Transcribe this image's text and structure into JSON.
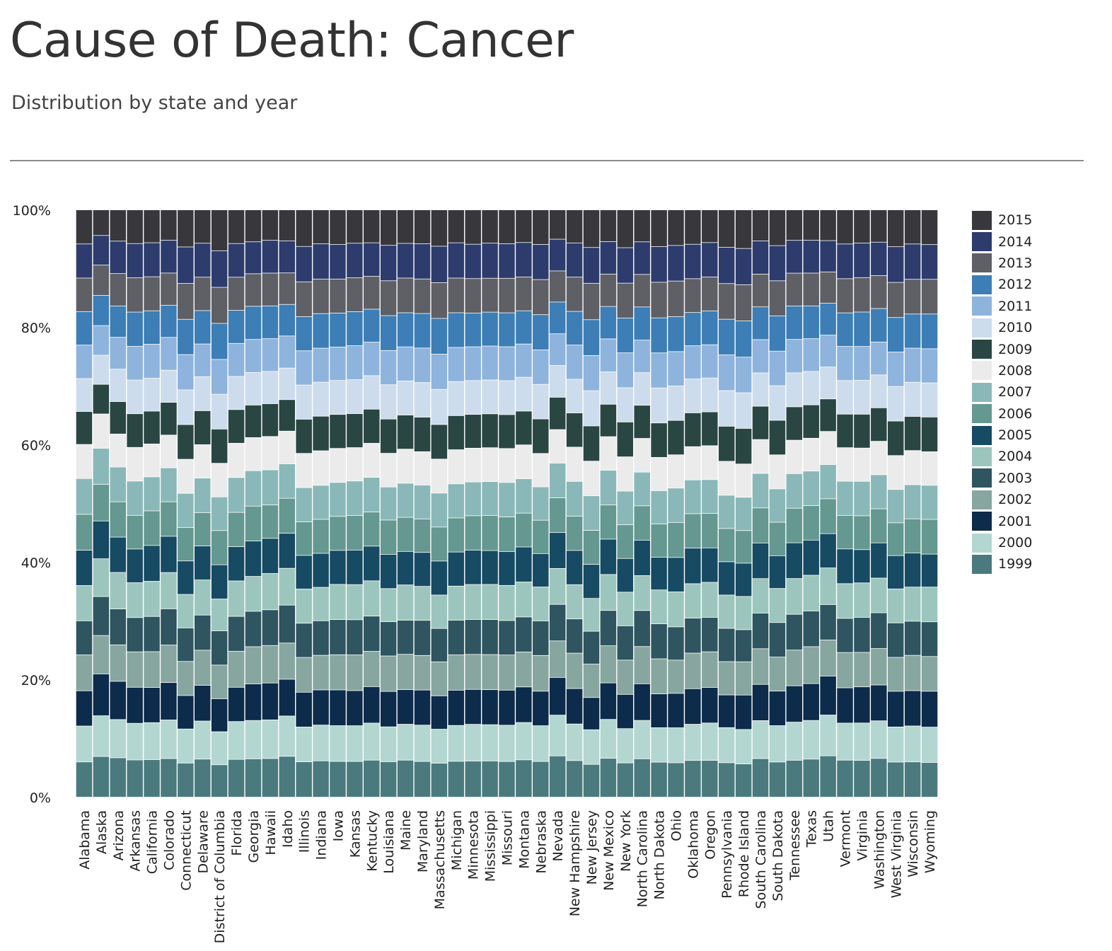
{
  "header": {
    "title": "Cause of Death: Cancer",
    "subtitle": "Distribution by state and year"
  },
  "chart_data": {
    "type": "bar",
    "stacked": true,
    "normalized": true,
    "ylim": [
      0,
      100
    ],
    "yticks": [
      "0%",
      "20%",
      "40%",
      "60%",
      "80%",
      "100%"
    ],
    "grid": false,
    "legend_position": "right",
    "categories": [
      "Alabama",
      "Alaska",
      "Arizona",
      "Arkansas",
      "California",
      "Colorado",
      "Connecticut",
      "Delaware",
      "District of Columbia",
      "Florida",
      "Georgia",
      "Hawaii",
      "Idaho",
      "Illinois",
      "Indiana",
      "Iowa",
      "Kansas",
      "Kentucky",
      "Louisiana",
      "Maine",
      "Maryland",
      "Massachusetts",
      "Michigan",
      "Minnesota",
      "Mississippi",
      "Missouri",
      "Montana",
      "Nebraska",
      "Nevada",
      "New Hampshire",
      "New Jersey",
      "New Mexico",
      "New York",
      "North Carolina",
      "North Dakota",
      "Ohio",
      "Oklahoma",
      "Oregon",
      "Pennsylvania",
      "Rhode Island",
      "South Carolina",
      "South Dakota",
      "Tennessee",
      "Texas",
      "Utah",
      "Vermont",
      "Virginia",
      "Washington",
      "West Virginia",
      "Wisconsin",
      "Wyoming"
    ],
    "series": [
      {
        "name": "1999",
        "color": "#4a7a7e",
        "values": [
          6.0,
          7.0,
          6.8,
          6.3,
          6.4,
          6.6,
          5.7,
          6.5,
          5.4,
          6.4,
          6.6,
          6.6,
          7.0,
          6.0,
          6.2,
          6.1,
          6.1,
          6.3,
          6.0,
          6.3,
          6.1,
          5.7,
          6.1,
          6.2,
          6.2,
          6.1,
          6.4,
          6.1,
          6.9,
          6.2,
          5.5,
          6.6,
          5.8,
          6.6,
          6.0,
          5.9,
          6.3,
          6.3,
          5.8,
          5.6,
          6.6,
          6.0,
          6.3,
          6.5,
          7.0,
          6.4,
          6.3,
          6.6,
          6.0,
          6.0,
          5.9
        ]
      },
      {
        "name": "2000",
        "color": "#b3d6d1",
        "values": [
          6.1,
          7.0,
          6.6,
          6.2,
          6.3,
          6.6,
          5.7,
          6.5,
          5.5,
          6.4,
          6.6,
          6.6,
          6.9,
          5.9,
          6.1,
          6.1,
          6.1,
          6.3,
          5.9,
          6.1,
          6.2,
          5.7,
          6.1,
          6.3,
          6.2,
          6.2,
          6.4,
          6.1,
          6.8,
          6.2,
          5.8,
          6.6,
          5.8,
          6.6,
          5.9,
          6.0,
          6.2,
          6.4,
          5.9,
          5.8,
          6.5,
          6.2,
          6.5,
          6.6,
          6.9,
          6.4,
          6.4,
          6.4,
          6.0,
          6.1,
          6.0
        ]
      },
      {
        "name": "2001",
        "color": "#0d2b4a",
        "values": [
          6.0,
          7.2,
          6.6,
          6.1,
          6.0,
          6.4,
          5.6,
          6.1,
          5.5,
          5.8,
          6.3,
          6.3,
          6.3,
          5.9,
          6.0,
          6.1,
          6.0,
          6.2,
          6.0,
          5.9,
          6.0,
          5.6,
          6.0,
          6.0,
          6.0,
          6.0,
          6.1,
          5.9,
          6.3,
          6.0,
          5.4,
          6.2,
          5.8,
          6.3,
          5.8,
          5.9,
          6.1,
          6.1,
          5.5,
          5.8,
          6.2,
          5.9,
          6.2,
          6.3,
          6.6,
          6.1,
          6.2,
          6.1,
          6.1,
          6.0,
          6.1
        ]
      },
      {
        "name": "2002",
        "color": "#87a6a0",
        "values": [
          6.1,
          6.6,
          6.3,
          6.0,
          6.1,
          6.4,
          5.7,
          6.0,
          5.6,
          6.1,
          6.4,
          6.4,
          6.2,
          5.9,
          5.9,
          6.0,
          6.1,
          6.0,
          6.0,
          6.0,
          5.9,
          5.7,
          6.0,
          6.0,
          6.0,
          6.0,
          6.0,
          6.1,
          6.1,
          6.0,
          5.6,
          6.3,
          5.8,
          6.4,
          6.0,
          5.7,
          6.1,
          6.1,
          5.6,
          5.6,
          6.1,
          5.8,
          6.1,
          6.3,
          6.1,
          6.1,
          5.9,
          6.2,
          5.8,
          6.0,
          5.9
        ]
      },
      {
        "name": "2003",
        "color": "#2e5560",
        "values": [
          5.8,
          6.7,
          6.2,
          5.8,
          6.0,
          6.2,
          5.6,
          6.0,
          5.7,
          5.9,
          6.1,
          6.1,
          6.5,
          5.8,
          5.9,
          6.0,
          6.0,
          6.0,
          5.8,
          5.8,
          6.0,
          5.6,
          5.9,
          6.0,
          6.0,
          5.9,
          6.0,
          5.9,
          6.1,
          5.8,
          5.5,
          6.0,
          5.8,
          6.2,
          6.0,
          5.7,
          6.0,
          5.9,
          5.6,
          5.4,
          6.1,
          5.9,
          6.1,
          6.1,
          6.0,
          5.9,
          6.0,
          6.1,
          5.9,
          5.8,
          5.9
        ]
      },
      {
        "name": "2004",
        "color": "#9cc6bd",
        "values": [
          6.0,
          6.5,
          6.3,
          5.9,
          6.0,
          6.2,
          5.6,
          6.0,
          5.3,
          6.0,
          6.0,
          6.2,
          6.3,
          5.8,
          5.7,
          6.0,
          6.0,
          6.0,
          5.6,
          6.0,
          5.8,
          5.6,
          5.8,
          6.0,
          6.0,
          6.0,
          6.0,
          5.8,
          6.0,
          5.8,
          5.5,
          6.1,
          5.7,
          6.0,
          5.8,
          6.0,
          5.9,
          6.0,
          5.6,
          5.6,
          5.9,
          5.8,
          6.1,
          6.1,
          6.2,
          6.0,
          5.9,
          5.9,
          5.8,
          5.8,
          5.9
        ]
      },
      {
        "name": "2005",
        "color": "#174a63",
        "values": [
          6.0,
          6.5,
          6.1,
          5.7,
          6.1,
          6.2,
          5.6,
          5.8,
          5.7,
          5.8,
          6.1,
          6.0,
          6.0,
          5.7,
          5.8,
          5.8,
          5.9,
          5.9,
          5.8,
          5.7,
          5.8,
          5.7,
          5.8,
          5.9,
          5.8,
          5.8,
          6.0,
          5.7,
          6.0,
          5.8,
          5.7,
          6.0,
          5.7,
          6.1,
          5.6,
          5.9,
          6.1,
          5.9,
          5.6,
          5.6,
          6.1,
          5.6,
          6.1,
          6.0,
          5.8,
          6.0,
          5.7,
          6.0,
          5.7,
          5.8,
          5.6
        ]
      },
      {
        "name": "2006",
        "color": "#649891",
        "values": [
          6.1,
          6.3,
          6.1,
          5.7,
          5.9,
          5.9,
          5.6,
          5.7,
          5.7,
          5.8,
          6.0,
          5.7,
          6.0,
          5.7,
          5.8,
          5.8,
          5.9,
          5.8,
          5.8,
          5.8,
          5.7,
          5.7,
          5.8,
          5.9,
          6.0,
          5.9,
          5.8,
          5.7,
          5.8,
          5.8,
          5.7,
          5.8,
          5.7,
          5.9,
          5.7,
          6.0,
          5.9,
          5.9,
          5.6,
          5.5,
          6.0,
          5.7,
          5.9,
          5.9,
          5.9,
          5.8,
          5.8,
          5.8,
          5.6,
          5.8,
          5.9
        ]
      },
      {
        "name": "2007",
        "color": "#8ab8b9",
        "values": [
          6.1,
          6.2,
          6.0,
          5.8,
          5.8,
          5.8,
          5.7,
          5.9,
          5.6,
          5.9,
          6.1,
          6.0,
          5.9,
          5.8,
          5.8,
          5.8,
          5.9,
          5.9,
          5.6,
          5.8,
          5.8,
          5.7,
          5.8,
          5.8,
          5.8,
          5.9,
          5.9,
          5.7,
          5.8,
          5.9,
          5.8,
          5.9,
          5.7,
          5.8,
          5.7,
          5.9,
          5.8,
          5.8,
          5.6,
          5.6,
          5.9,
          5.7,
          5.9,
          5.9,
          5.8,
          5.9,
          5.9,
          5.8,
          5.7,
          5.8,
          5.8
        ]
      },
      {
        "name": "2008",
        "color": "#ebebeb",
        "values": [
          5.8,
          5.9,
          5.7,
          5.7,
          5.6,
          5.6,
          5.7,
          5.7,
          5.6,
          5.8,
          5.7,
          5.7,
          5.6,
          5.8,
          5.9,
          5.8,
          5.7,
          5.8,
          5.7,
          5.8,
          5.7,
          5.7,
          5.8,
          5.8,
          5.8,
          5.8,
          5.8,
          5.7,
          5.6,
          5.8,
          5.8,
          5.7,
          5.8,
          5.8,
          5.7,
          5.7,
          5.7,
          5.8,
          5.7,
          5.6,
          5.8,
          5.8,
          5.7,
          5.6,
          5.6,
          5.8,
          5.7,
          5.7,
          5.8,
          5.8,
          5.7
        ]
      },
      {
        "name": "2009",
        "color": "#2a4642",
        "values": [
          5.6,
          5.1,
          5.6,
          5.7,
          5.6,
          5.6,
          5.8,
          5.8,
          5.7,
          5.7,
          5.6,
          5.6,
          5.4,
          5.8,
          5.9,
          5.8,
          5.8,
          5.8,
          5.8,
          5.8,
          5.9,
          5.8,
          5.8,
          5.8,
          5.8,
          5.8,
          5.8,
          5.9,
          5.4,
          5.8,
          5.9,
          5.5,
          5.9,
          5.7,
          5.9,
          5.9,
          5.8,
          5.8,
          5.9,
          6.0,
          5.7,
          5.9,
          5.7,
          5.7,
          5.5,
          5.8,
          5.8,
          5.7,
          5.9,
          5.8,
          5.9
        ]
      },
      {
        "name": "2010",
        "color": "#ccdcec",
        "values": [
          5.6,
          5.0,
          5.6,
          5.7,
          5.6,
          5.5,
          5.8,
          5.8,
          5.8,
          5.6,
          5.6,
          5.5,
          5.4,
          5.8,
          5.8,
          5.8,
          5.8,
          5.7,
          5.8,
          5.8,
          5.9,
          5.9,
          5.8,
          5.8,
          5.8,
          5.8,
          5.8,
          5.9,
          5.3,
          5.7,
          5.9,
          5.5,
          5.8,
          5.6,
          6.0,
          5.9,
          5.8,
          5.8,
          6.0,
          6.0,
          5.7,
          5.9,
          5.8,
          5.7,
          5.4,
          5.8,
          5.8,
          5.6,
          5.9,
          5.8,
          5.8
        ]
      },
      {
        "name": "2011",
        "color": "#8eb4dd",
        "values": [
          5.7,
          5.1,
          5.5,
          5.7,
          5.8,
          5.6,
          5.9,
          5.6,
          5.8,
          5.6,
          5.7,
          5.6,
          5.5,
          5.8,
          5.8,
          5.7,
          5.8,
          5.7,
          5.8,
          5.8,
          5.9,
          5.9,
          5.8,
          5.8,
          5.8,
          5.8,
          5.7,
          5.9,
          5.3,
          5.8,
          5.9,
          5.6,
          5.9,
          5.6,
          6.0,
          5.9,
          5.7,
          5.7,
          6.0,
          6.0,
          5.7,
          5.9,
          5.7,
          5.6,
          5.4,
          5.9,
          5.8,
          5.6,
          5.9,
          5.8,
          5.8
        ]
      },
      {
        "name": "2012",
        "color": "#3c7eb5",
        "values": [
          5.7,
          5.2,
          5.4,
          5.8,
          5.7,
          5.5,
          5.9,
          5.7,
          6.0,
          5.6,
          5.7,
          5.6,
          5.4,
          5.8,
          5.9,
          5.8,
          5.8,
          5.6,
          5.9,
          5.8,
          5.9,
          6.0,
          5.9,
          5.8,
          5.8,
          5.8,
          5.7,
          6.0,
          5.3,
          5.7,
          6.0,
          5.5,
          5.9,
          5.7,
          6.0,
          6.0,
          5.7,
          5.8,
          6.0,
          6.1,
          5.6,
          6.0,
          5.7,
          5.6,
          5.4,
          5.8,
          5.9,
          5.7,
          5.9,
          5.8,
          5.9
        ]
      },
      {
        "name": "2013",
        "color": "#5f5f66",
        "values": [
          5.7,
          5.2,
          5.6,
          5.8,
          5.8,
          5.5,
          6.0,
          5.7,
          6.0,
          5.6,
          5.6,
          5.6,
          5.4,
          5.9,
          5.9,
          5.8,
          5.8,
          5.6,
          5.9,
          5.9,
          5.9,
          6.0,
          5.9,
          5.9,
          5.8,
          5.9,
          5.8,
          6.0,
          5.2,
          5.8,
          6.1,
          5.5,
          5.9,
          5.6,
          6.1,
          6.1,
          5.8,
          5.8,
          6.0,
          6.1,
          5.6,
          6.0,
          5.6,
          5.6,
          5.3,
          5.9,
          5.9,
          5.6,
          6.0,
          5.9,
          5.9
        ]
      },
      {
        "name": "2014",
        "color": "#2d3c6d",
        "values": [
          5.8,
          5.1,
          5.6,
          5.8,
          5.8,
          5.6,
          6.1,
          5.8,
          6.1,
          5.7,
          5.5,
          5.6,
          5.5,
          6.0,
          6.0,
          5.9,
          5.9,
          5.7,
          6.0,
          5.9,
          6.0,
          6.1,
          6.0,
          5.9,
          6.0,
          5.9,
          5.9,
          6.0,
          5.3,
          5.8,
          6.0,
          5.5,
          6.0,
          5.6,
          6.1,
          6.1,
          5.9,
          5.9,
          6.1,
          6.1,
          5.7,
          6.0,
          5.6,
          5.6,
          5.3,
          6.0,
          5.9,
          5.7,
          6.1,
          6.0,
          5.9
        ]
      },
      {
        "name": "2015",
        "color": "#37373c",
        "values": [
          5.8,
          4.4,
          5.4,
          5.7,
          5.6,
          5.2,
          6.2,
          5.7,
          6.8,
          5.7,
          5.5,
          5.2,
          5.3,
          6.2,
          5.8,
          5.9,
          5.7,
          5.6,
          6.0,
          5.7,
          5.8,
          6.1,
          5.6,
          5.9,
          5.7,
          5.8,
          5.6,
          5.9,
          4.9,
          5.6,
          6.3,
          5.4,
          6.4,
          5.5,
          6.3,
          6.1,
          5.9,
          5.6,
          6.3,
          6.5,
          5.3,
          6.1,
          5.2,
          5.2,
          5.2,
          5.9,
          5.7,
          5.5,
          6.3,
          5.8,
          5.9
        ]
      }
    ]
  }
}
